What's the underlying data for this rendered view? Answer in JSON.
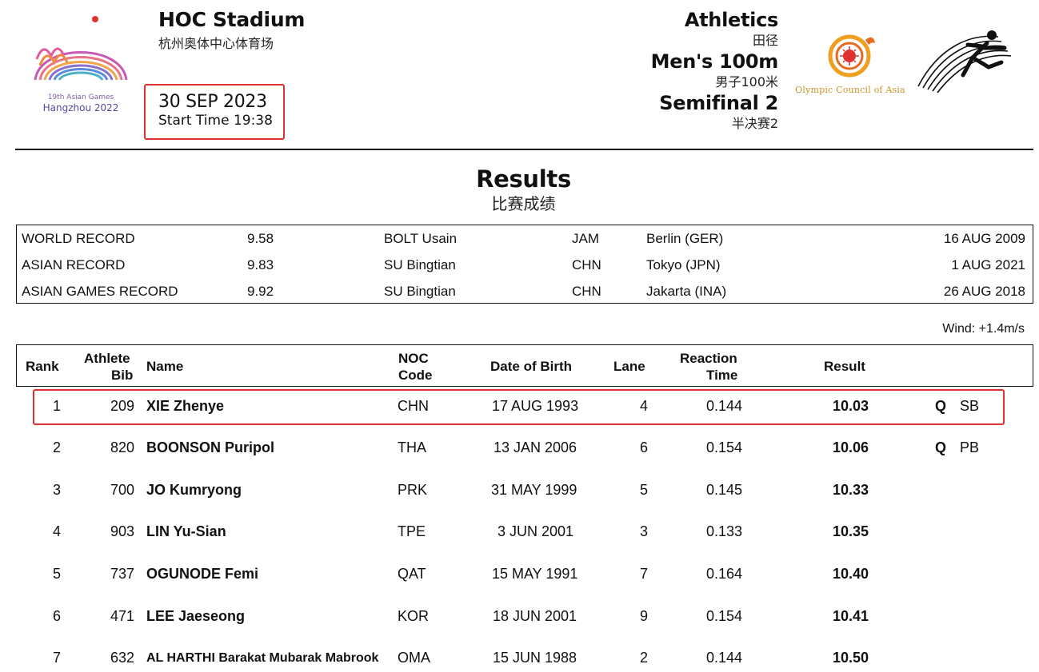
{
  "header": {
    "games_line1": "19th Asian Games",
    "games_line2": "Hangzhou 2022",
    "venue_en": "HOC Stadium",
    "venue_cn": "杭州奥体中心体育场",
    "date": "30 SEP 2023",
    "start_time": "Start Time 19:38",
    "sport_en": "Athletics",
    "sport_cn": "田径",
    "event_en": "Men's 100m",
    "event_cn": "男子100米",
    "phase_en": "Semifinal 2",
    "phase_cn": "半决赛2",
    "oca_text": "Olympic Council of Asia",
    "colors": {
      "highlight": "#e03131",
      "oca_gold": "#c8952a",
      "games_purple": "#5b47a5"
    }
  },
  "results_title": {
    "en": "Results",
    "cn": "比赛成绩"
  },
  "records": [
    {
      "type": "WORLD RECORD",
      "mark": "9.58",
      "holder": "BOLT Usain",
      "noc": "JAM",
      "place": "Berlin (GER)",
      "date": "16 AUG 2009"
    },
    {
      "type": "ASIAN RECORD",
      "mark": "9.83",
      "holder": "SU Bingtian",
      "noc": "CHN",
      "place": "Tokyo (JPN)",
      "date": "1 AUG 2021"
    },
    {
      "type": "ASIAN GAMES RECORD",
      "mark": "9.92",
      "holder": "SU Bingtian",
      "noc": "CHN",
      "place": "Jakarta (INA)",
      "date": "26 AUG 2018"
    }
  ],
  "wind": "Wind: +1.4m/s",
  "table": {
    "headers": {
      "rank": "Rank",
      "bib_1": "Athlete",
      "bib_2": "Bib",
      "name": "Name",
      "noc_1": "NOC",
      "noc_2": "Code",
      "dob": "Date of Birth",
      "lane": "Lane",
      "reaction_1": "Reaction",
      "reaction_2": "Time",
      "result": "Result"
    },
    "rows": [
      {
        "rank": "1",
        "bib": "209",
        "name": "XIE Zhenye",
        "noc": "CHN",
        "dob": "17 AUG 1993",
        "lane": "4",
        "reaction": "0.144",
        "result": "10.03",
        "q": "Q",
        "note": "SB"
      },
      {
        "rank": "2",
        "bib": "820",
        "name": "BOONSON Puripol",
        "noc": "THA",
        "dob": "13 JAN 2006",
        "lane": "6",
        "reaction": "0.154",
        "result": "10.06",
        "q": "Q",
        "note": "PB"
      },
      {
        "rank": "3",
        "bib": "700",
        "name": "JO Kumryong",
        "noc": "PRK",
        "dob": "31 MAY 1999",
        "lane": "5",
        "reaction": "0.145",
        "result": "10.33",
        "q": "",
        "note": ""
      },
      {
        "rank": "4",
        "bib": "903",
        "name": "LIN Yu-Sian",
        "noc": "TPE",
        "dob": "3 JUN 2001",
        "lane": "3",
        "reaction": "0.133",
        "result": "10.35",
        "q": "",
        "note": ""
      },
      {
        "rank": "5",
        "bib": "737",
        "name": "OGUNODE Femi",
        "noc": "QAT",
        "dob": "15 MAY 1991",
        "lane": "7",
        "reaction": "0.164",
        "result": "10.40",
        "q": "",
        "note": ""
      },
      {
        "rank": "6",
        "bib": "471",
        "name": "LEE Jaeseong",
        "noc": "KOR",
        "dob": "18 JUN 2001",
        "lane": "9",
        "reaction": "0.154",
        "result": "10.41",
        "q": "",
        "note": ""
      },
      {
        "rank": "7",
        "bib": "632",
        "name": "AL HARTHI Barakat Mubarak Mabrook",
        "noc": "OMA",
        "dob": "15 JUN 1988",
        "lane": "2",
        "reaction": "0.144",
        "result": "10.50",
        "q": "",
        "note": ""
      }
    ]
  }
}
